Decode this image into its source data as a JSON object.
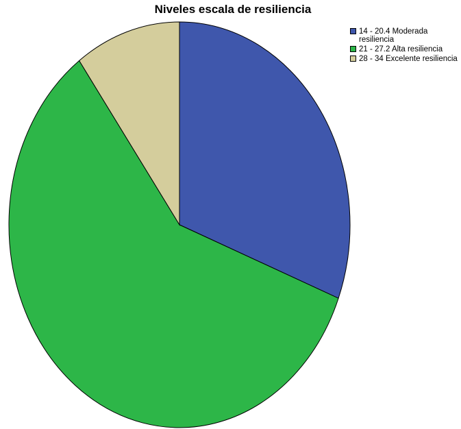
{
  "chart_data": {
    "type": "pie",
    "title": "Niveles escala de resiliencia",
    "categories": [
      "14 - 20.4 Moderada resiliencia",
      "21 - 27.2 Alta resiliencia",
      "28 - 34 Excelente resiliencia"
    ],
    "values": [
      30.9,
      59.1,
      10.0
    ],
    "colors": [
      "#3f57ac",
      "#2db648",
      "#d4cd9c"
    ],
    "start_angle": "top",
    "direction": "clockwise",
    "legend": "top-right"
  }
}
